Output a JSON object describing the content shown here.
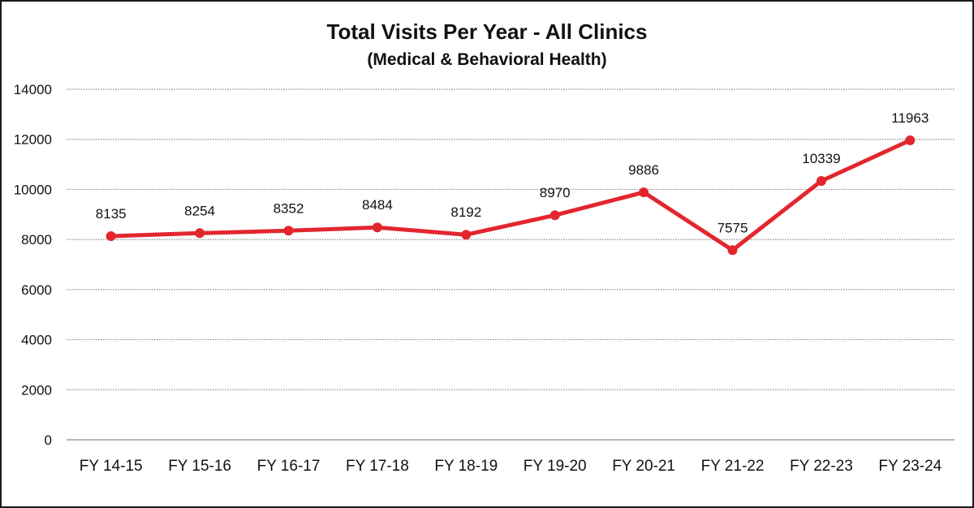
{
  "chart_data": {
    "type": "line",
    "title": "Total Visits Per Year - All Clinics",
    "subtitle": "(Medical & Behavioral Health)",
    "categories": [
      "FY 14-15",
      "FY 15-16",
      "FY 16-17",
      "FY 17-18",
      "FY 18-19",
      "FY 19-20",
      "FY 20-21",
      "FY 21-22",
      "FY 22-23",
      "FY 23-24"
    ],
    "series": [
      {
        "values": [
          8135,
          8254,
          8352,
          8484,
          8192,
          8970,
          9886,
          7575,
          10339,
          11963
        ],
        "color": "#e3262e"
      }
    ],
    "ylim": [
      0,
      14000
    ],
    "yticks": [
      0,
      2000,
      4000,
      6000,
      8000,
      10000,
      12000,
      14000
    ],
    "grid": true,
    "data_labels": true,
    "legend": "none"
  }
}
